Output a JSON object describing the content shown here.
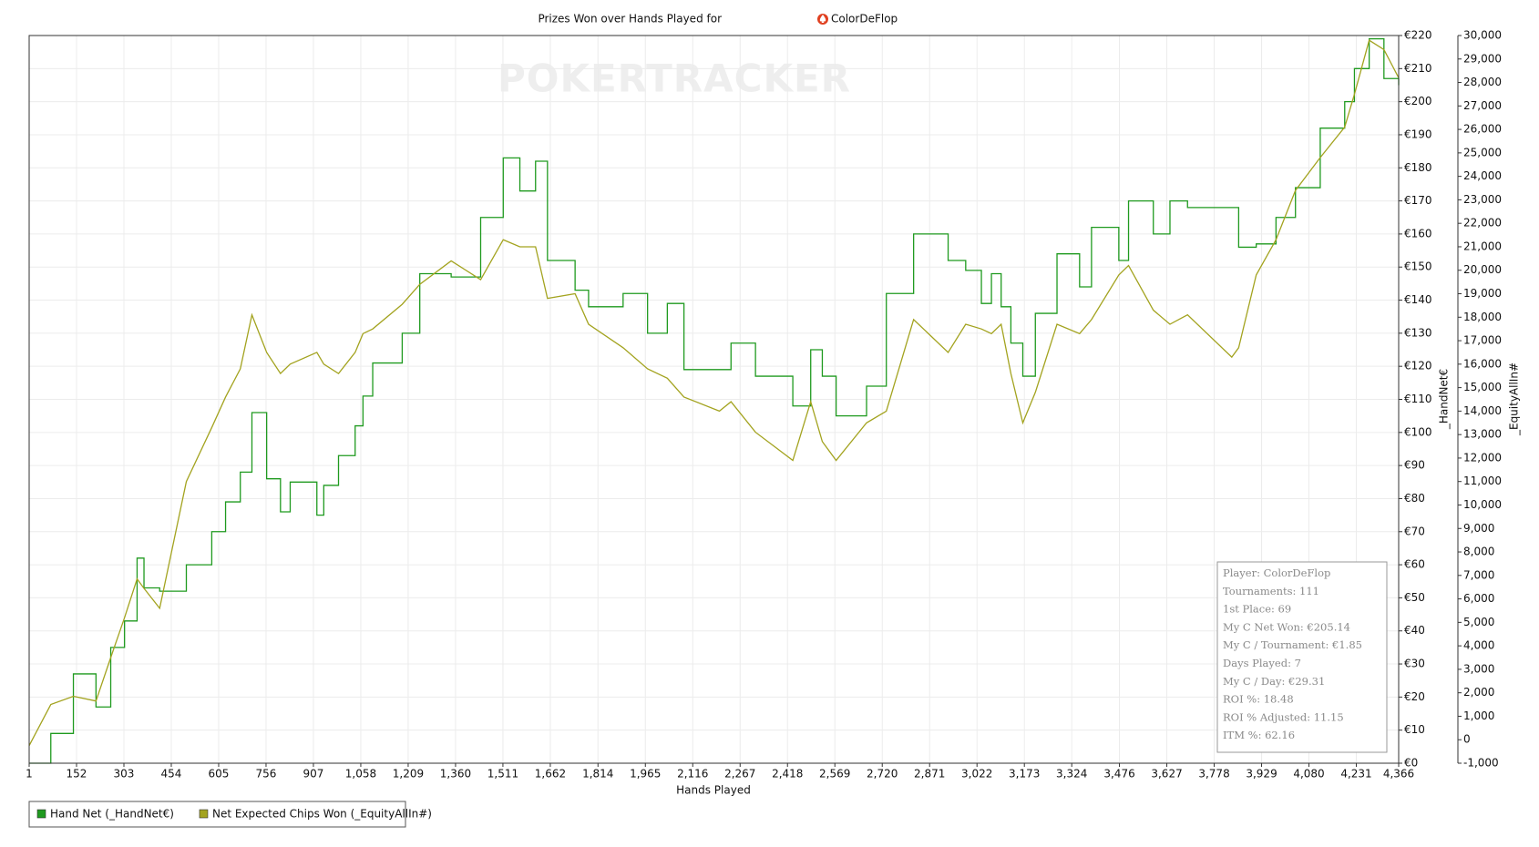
{
  "chart_data": {
    "type": "line",
    "title": "Prizes Won over Hands Played for",
    "title_player": "ColorDeFlop",
    "watermark": "POKERTRACKER",
    "xlabel": "Hands Played",
    "ylabel": "_HandNet€",
    "y2label": "_EquityAllIn#",
    "grid": true,
    "legend": "bottom-left",
    "x": [
      1,
      70,
      142,
      214,
      261,
      305,
      345,
      367,
      417,
      502,
      583,
      627,
      674,
      711,
      758,
      802,
      833,
      918,
      940,
      987,
      1040,
      1065,
      1096,
      1190,
      1246,
      1346,
      1440,
      1512,
      1565,
      1615,
      1653,
      1741,
      1784,
      1894,
      1972,
      2035,
      2088,
      2201,
      2238,
      2316,
      2435,
      2492,
      2529,
      2573,
      2670,
      2733,
      2820,
      2930,
      2986,
      3036,
      3068,
      3099,
      3130,
      3168,
      3208,
      3277,
      3349,
      3387,
      3474,
      3505,
      3584,
      3637,
      3693,
      3834,
      3856,
      3912,
      3975,
      4037,
      4116,
      4194,
      4225,
      4272,
      4319,
      4366
    ],
    "series": [
      {
        "name": "Hand Net (_HandNet€)",
        "color": "#1f9a1f",
        "style": "step",
        "values": [
          0,
          9,
          27,
          17,
          35,
          43,
          62,
          53,
          52,
          60,
          70,
          79,
          88,
          106,
          86,
          76,
          85,
          75,
          84,
          93,
          102,
          111,
          121,
          130,
          148,
          147,
          165,
          183,
          173,
          182,
          152,
          143,
          138,
          142,
          130,
          139,
          119,
          119,
          127,
          117,
          108,
          125,
          117,
          105,
          114,
          142,
          160,
          152,
          149,
          139,
          148,
          138,
          127,
          117,
          136,
          154,
          144,
          162,
          152,
          170,
          160,
          170,
          168,
          168,
          156,
          157,
          165,
          174,
          192,
          200,
          210,
          219,
          207,
          205
        ]
      },
      {
        "name": "Net Expected Chips Won (_EquityAllIn#)",
        "color": "#a3a31f",
        "axis": "y2",
        "values": [
          -250,
          1500,
          1850,
          1650,
          3500,
          5200,
          6850,
          6450,
          5600,
          11000,
          13300,
          14600,
          15800,
          18100,
          16500,
          15600,
          16000,
          16500,
          16000,
          15600,
          16500,
          17300,
          17500,
          18550,
          19400,
          20400,
          19600,
          21300,
          21000,
          21000,
          18800,
          19000,
          17700,
          16700,
          15800,
          15400,
          14600,
          14000,
          14400,
          13100,
          11900,
          14400,
          12700,
          11900,
          13500,
          14000,
          17900,
          16500,
          17700,
          17500,
          17300,
          17700,
          15600,
          13500,
          14800,
          17700,
          17300,
          17900,
          19800,
          20200,
          18300,
          17700,
          18100,
          16300,
          16700,
          19800,
          21300,
          23400,
          24800,
          26100,
          27500,
          29800,
          29400,
          28200
        ]
      }
    ],
    "xlim": [
      1,
      4366
    ],
    "xticks": [
      1,
      152,
      303,
      454,
      605,
      756,
      907,
      {
        "value": 1058,
        "label": "1,058"
      },
      {
        "value": 1209,
        "label": "1,209"
      },
      {
        "value": 1360,
        "label": "1,360"
      },
      {
        "value": 1511,
        "label": "1,511"
      },
      {
        "value": 1662,
        "label": "1,662"
      },
      {
        "value": 1814,
        "label": "1,814"
      },
      {
        "value": 1965,
        "label": "1,965"
      },
      {
        "value": 2116,
        "label": "2,116"
      },
      {
        "value": 2267,
        "label": "2,267"
      },
      {
        "value": 2418,
        "label": "2,418"
      },
      {
        "value": 2569,
        "label": "2,569"
      },
      {
        "value": 2720,
        "label": "2,720"
      },
      {
        "value": 2871,
        "label": "2,871"
      },
      {
        "value": 3022,
        "label": "3,022"
      },
      {
        "value": 3173,
        "label": "3,173"
      },
      {
        "value": 3324,
        "label": "3,324"
      },
      {
        "value": 3476,
        "label": "3,476"
      },
      {
        "value": 3627,
        "label": "3,627"
      },
      {
        "value": 3778,
        "label": "3,778"
      },
      {
        "value": 3929,
        "label": "3,929"
      },
      {
        "value": 4080,
        "label": "4,080"
      },
      {
        "value": 4231,
        "label": "4,231"
      },
      {
        "value": 4366,
        "label": "4,366"
      }
    ],
    "ylim": [
      0,
      220
    ],
    "yticks": [
      {
        "value": 0,
        "label": "€0"
      },
      {
        "value": 10,
        "label": "€10"
      },
      {
        "value": 20,
        "label": "€20"
      },
      {
        "value": 30,
        "label": "€30"
      },
      {
        "value": 40,
        "label": "€40"
      },
      {
        "value": 50,
        "label": "€50"
      },
      {
        "value": 60,
        "label": "€60"
      },
      {
        "value": 70,
        "label": "€70"
      },
      {
        "value": 80,
        "label": "€80"
      },
      {
        "value": 90,
        "label": "€90"
      },
      {
        "value": 100,
        "label": "€100"
      },
      {
        "value": 110,
        "label": "€110"
      },
      {
        "value": 120,
        "label": "€120"
      },
      {
        "value": 130,
        "label": "€130"
      },
      {
        "value": 140,
        "label": "€140"
      },
      {
        "value": 150,
        "label": "€150"
      },
      {
        "value": 160,
        "label": "€160"
      },
      {
        "value": 170,
        "label": "€170"
      },
      {
        "value": 180,
        "label": "€180"
      },
      {
        "value": 190,
        "label": "€190"
      },
      {
        "value": 200,
        "label": "€200"
      },
      {
        "value": 210,
        "label": "€210"
      },
      {
        "value": 220,
        "label": "€220"
      }
    ],
    "y2lim": [
      -1000,
      30000
    ],
    "y2ticks": [
      {
        "value": -1000,
        "label": "-1,000"
      },
      0,
      {
        "value": 1000,
        "label": "1,000"
      },
      {
        "value": 2000,
        "label": "2,000"
      },
      {
        "value": 3000,
        "label": "3,000"
      },
      {
        "value": 4000,
        "label": "4,000"
      },
      {
        "value": 5000,
        "label": "5,000"
      },
      {
        "value": 6000,
        "label": "6,000"
      },
      {
        "value": 7000,
        "label": "7,000"
      },
      {
        "value": 8000,
        "label": "8,000"
      },
      {
        "value": 9000,
        "label": "9,000"
      },
      {
        "value": 10000,
        "label": "10,000"
      },
      {
        "value": 11000,
        "label": "11,000"
      },
      {
        "value": 12000,
        "label": "12,000"
      },
      {
        "value": 13000,
        "label": "13,000"
      },
      {
        "value": 14000,
        "label": "14,000"
      },
      {
        "value": 15000,
        "label": "15,000"
      },
      {
        "value": 16000,
        "label": "16,000"
      },
      {
        "value": 17000,
        "label": "17,000"
      },
      {
        "value": 18000,
        "label": "18,000"
      },
      {
        "value": 19000,
        "label": "19,000"
      },
      {
        "value": 20000,
        "label": "20,000"
      },
      {
        "value": 21000,
        "label": "21,000"
      },
      {
        "value": 22000,
        "label": "22,000"
      },
      {
        "value": 23000,
        "label": "23,000"
      },
      {
        "value": 24000,
        "label": "24,000"
      },
      {
        "value": 25000,
        "label": "25,000"
      },
      {
        "value": 26000,
        "label": "26,000"
      },
      {
        "value": 27000,
        "label": "27,000"
      },
      {
        "value": 28000,
        "label": "28,000"
      },
      {
        "value": 29000,
        "label": "29,000"
      },
      {
        "value": 30000,
        "label": "30,000"
      }
    ],
    "stats": [
      "Player: ColorDeFlop",
      "Tournaments: 111",
      "1st Place: 69",
      "My C Net Won: €205.14",
      "My C / Tournament: €1.85",
      "Days Played: 7",
      "My C / Day: €29.31",
      "ROI %: 18.48",
      "ROI % Adjusted: 11.15",
      "ITM %: 62.16"
    ]
  }
}
